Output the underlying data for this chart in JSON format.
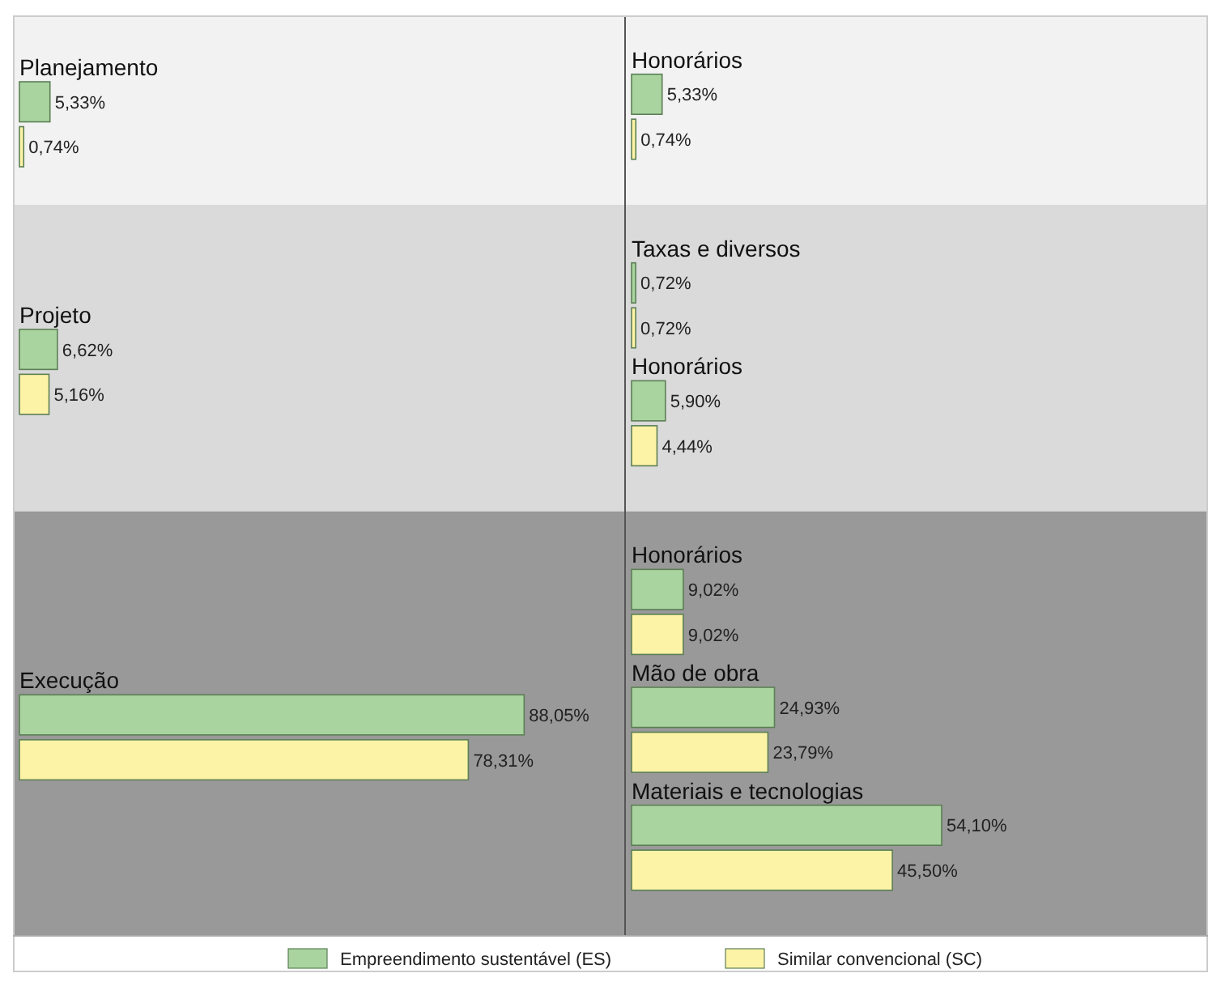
{
  "chart_data": [
    {
      "type": "bar",
      "orientation": "horizontal",
      "categories": [
        "Planejamento",
        "Projeto",
        "Execução"
      ],
      "series": [
        {
          "name": "Empreendimento sustentável (ES)",
          "color": "#a9d4a0",
          "values": [
            5.33,
            6.62,
            88.05
          ],
          "value_labels": [
            "5,33%",
            "6,62%",
            "88,05%"
          ]
        },
        {
          "name": "Similar convencional (SC)",
          "color": "#fdf3a6",
          "values": [
            0.74,
            5.16,
            78.31
          ],
          "value_labels": [
            "0,74%",
            "5,16%",
            "78,31%"
          ]
        }
      ],
      "legend": "bottom"
    },
    {
      "type": "bar",
      "orientation": "horizontal",
      "categories": [
        "Honorários"
      ],
      "series": [
        {
          "color": "#a9d4a0",
          "values": [
            5.33
          ],
          "value_labels": [
            "5,33%"
          ]
        },
        {
          "color": "#fdf3a6",
          "values": [
            0.74
          ],
          "value_labels": [
            "0,74%"
          ]
        }
      ]
    },
    {
      "type": "bar",
      "orientation": "horizontal",
      "categories": [
        "Taxas e diversos",
        "Honorários"
      ],
      "series": [
        {
          "color": "#a9d4a0",
          "values": [
            0.72,
            5.9
          ],
          "value_labels": [
            "0,72%",
            "5,90%"
          ]
        },
        {
          "color": "#fdf3a6",
          "values": [
            0.72,
            4.44
          ],
          "value_labels": [
            "0,72%",
            "4,44%"
          ]
        }
      ]
    },
    {
      "type": "bar",
      "orientation": "horizontal",
      "categories": [
        "Honorários",
        "Mão de obra",
        "Materiais e tecnologias"
      ],
      "series": [
        {
          "color": "#a9d4a0",
          "values": [
            9.02,
            24.93,
            54.1
          ],
          "value_labels": [
            "9,02%",
            "24,93%",
            "54,10%"
          ]
        },
        {
          "color": "#fdf3a6",
          "values": [
            9.02,
            23.79,
            45.5
          ],
          "value_labels": [
            "9,02%",
            "23,79%",
            "45,50%"
          ]
        }
      ]
    }
  ]
}
